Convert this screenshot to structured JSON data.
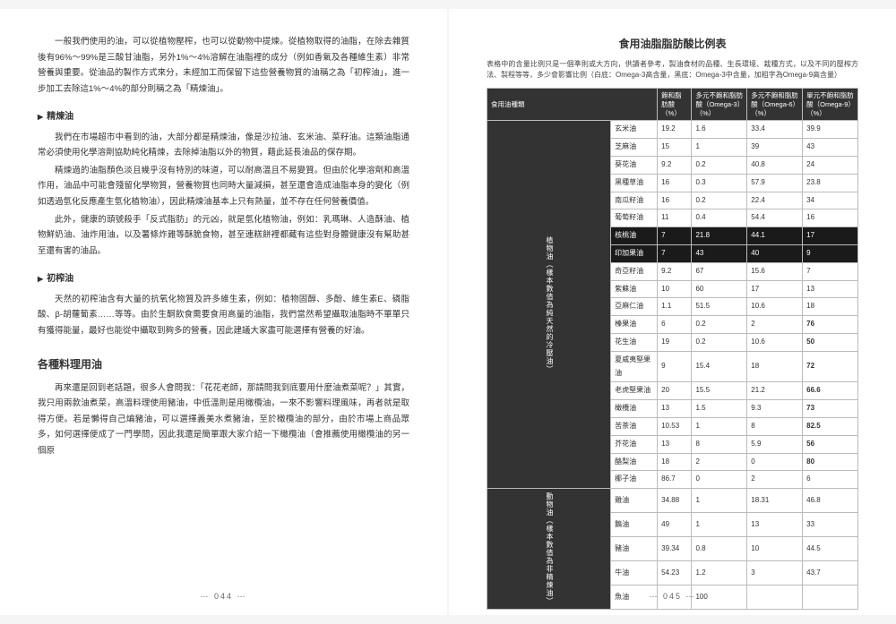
{
  "left": {
    "p1": "一般我們使用的油，可以從植物壓榨，也可以從動物中提煉。從植物取得的油脂，在除去雜質後有96%～99%是三酸甘油脂，另外1%～4%溶解在油脂裡的成分（例如香氣及各種維生素）非常營養與重要。從油品的製作方式來分，未經加工而保留下這些營養物質的油稱之為「初榨油」，進一步加工去除這1%～4%的部分則稱之為「精煉油」。",
    "h1": "精煉油",
    "p2": "我們在市場超市中看到的油，大部分都是精煉油，像是沙拉油、玄米油、菜籽油。這類油脂通常必須使用化學溶劑協助純化精煉，去除掉油脂以外的物質，藉此延長油品的保存期。",
    "p3": "精煉過的油脂顏色淡且幾乎沒有特別的味道，可以耐高溫且不易變質。但由於化學溶劑和高溫作用，油品中可能會殘留化學物質，營養物質也同時大量減損，甚至還會造成油脂本身的變化（例如透過氫化反應產生氫化植物油），因此精煉油基本上只有熱量，並不存在任何營養價值。",
    "p4": "此外，健康的頭號殺手「反式脂肪」的元凶，就是氫化植物油，例如：乳瑪琳、人造酥油、植物鮮奶油、油炸用油，以及薯條炸雞等酥脆食物，甚至連糕餅裡都藏有這些對身體健康沒有幫助甚至還有害的油品。",
    "h2": "初榨油",
    "p5": "天然的初榨油含有大量的抗氧化物質及許多維生素，例如：植物固醇、多酚、維生素E、磷脂酸、β-胡蘿蔔素……等等。由於生酮飲食需要食用高量的油脂，我們當然希望攝取油脂時不單單只有獲得能量，最好也能從中攝取到夠多的營養，因此建議大家盡可能選擇有營養的好油。",
    "h3": "各種料理用油",
    "p6": "再來還是回到老話題，很多人會問我：「花花老師，那請問我到底要用什麼油煮菜呢？」其實，我只用兩款油煮菜，高溫料理使用豬油，中低溫則是用橄欖油，一來不影響料理風味，再者就是取得方便。若是懶得自己煸豬油，可以選擇義美水煮豬油，至於橄欖油的部分，由於市場上商品眾多，如何選擇便成了一門學問，因此我還是簡單跟大家介紹一下橄欖油（會推薦使用橄欖油的另一個原",
    "pagenum": "⋯ 044 ⋯"
  },
  "right": {
    "title": "食用油脂脂肪酸比例表",
    "note": "表格中的含量比例只是一個準則或大方向，供讀者參考，製油食材的品種、生長環境、栽種方式，以及不同的壓榨方法、製程等等，多少會影響比例（白底：Omega-3高含量，黑底：Omega-3中含量，加粗字為Omega-9高含量）",
    "headers": [
      "食用油種類",
      "",
      "飽和脂肪酸（%）",
      "多元不飽和脂肪酸（Omega-3）（%）",
      "多元不飽和脂肪酸（Omega-6）（%）",
      "單元不飽和脂肪酸（Omega-9）（%）"
    ],
    "cat1": "植物油（樣本數值為純天然的冷壓油）",
    "cat2": "動物油（樣本數值為非精煉油）",
    "plant_rows": [
      {
        "name": "玄米油",
        "v": [
          "19.2",
          "1.6",
          "33.4",
          "39.9"
        ],
        "dark": false,
        "bold": []
      },
      {
        "name": "芝麻油",
        "v": [
          "15",
          "1",
          "39",
          "43"
        ],
        "dark": false,
        "bold": []
      },
      {
        "name": "葵花油",
        "v": [
          "9.2",
          "0.2",
          "40.8",
          "24"
        ],
        "dark": false,
        "bold": []
      },
      {
        "name": "黑種草油",
        "v": [
          "16",
          "0.3",
          "57.9",
          "23.8"
        ],
        "dark": false,
        "bold": []
      },
      {
        "name": "南瓜籽油",
        "v": [
          "16",
          "0.2",
          "22.4",
          "34"
        ],
        "dark": false,
        "bold": []
      },
      {
        "name": "葡萄籽油",
        "v": [
          "11",
          "0.4",
          "54.4",
          "16"
        ],
        "dark": false,
        "bold": []
      },
      {
        "name": "核桃油",
        "v": [
          "7",
          "21.8",
          "44.1",
          "17"
        ],
        "dark": true,
        "bold": []
      },
      {
        "name": "印加果油",
        "v": [
          "7",
          "43",
          "40",
          "9"
        ],
        "dark": true,
        "bold": []
      },
      {
        "name": "奇亞籽油",
        "v": [
          "9.2",
          "67",
          "15.6",
          "7"
        ],
        "dark": false,
        "bold": []
      },
      {
        "name": "紫蘇油",
        "v": [
          "10",
          "60",
          "17",
          "13"
        ],
        "dark": false,
        "bold": []
      },
      {
        "name": "亞麻仁油",
        "v": [
          "1.1",
          "51.5",
          "10.6",
          "18"
        ],
        "dark": false,
        "bold": []
      },
      {
        "name": "榛果油",
        "v": [
          "6",
          "0.2",
          "2",
          "76"
        ],
        "dark": false,
        "bold": [
          3
        ]
      },
      {
        "name": "花生油",
        "v": [
          "19",
          "0.2",
          "10.6",
          "50"
        ],
        "dark": false,
        "bold": [
          3
        ]
      },
      {
        "name": "夏威夷堅果油",
        "v": [
          "9",
          "15.4",
          "18",
          "72"
        ],
        "dark": false,
        "bold": [
          3
        ]
      },
      {
        "name": "老虎堅果油",
        "v": [
          "20",
          "15.5",
          "21.2",
          "66.6"
        ],
        "dark": false,
        "bold": [
          3
        ]
      },
      {
        "name": "橄欖油",
        "v": [
          "13",
          "1.5",
          "9.3",
          "73"
        ],
        "dark": false,
        "bold": [
          3
        ]
      },
      {
        "name": "苦茶油",
        "v": [
          "10.53",
          "1",
          "8",
          "82.5"
        ],
        "dark": false,
        "bold": [
          3
        ]
      },
      {
        "name": "芥花油",
        "v": [
          "13",
          "8",
          "5.9",
          "56"
        ],
        "dark": false,
        "bold": [
          3
        ]
      },
      {
        "name": "酪梨油",
        "v": [
          "18",
          "2",
          "0",
          "80"
        ],
        "dark": false,
        "bold": [
          3
        ]
      },
      {
        "name": "椰子油",
        "v": [
          "86.7",
          "0",
          "2",
          "6"
        ],
        "dark": false,
        "bold": []
      }
    ],
    "animal_rows": [
      {
        "name": "雞油",
        "v": [
          "34.88",
          "1",
          "18.31",
          "46.8"
        ],
        "dark": false,
        "bold": []
      },
      {
        "name": "鵝油",
        "v": [
          "49",
          "1",
          "13",
          "33"
        ],
        "dark": false,
        "bold": []
      },
      {
        "name": "豬油",
        "v": [
          "39.34",
          "0.8",
          "10",
          "44.5"
        ],
        "dark": false,
        "bold": []
      },
      {
        "name": "牛油",
        "v": [
          "54.23",
          "1.2",
          "3",
          "43.7"
        ],
        "dark": false,
        "bold": []
      },
      {
        "name": "魚油",
        "v": [
          "",
          "100",
          "",
          ""
        ],
        "dark": false,
        "bold": []
      }
    ],
    "pagenum": "⋯ 045 ⋯"
  }
}
